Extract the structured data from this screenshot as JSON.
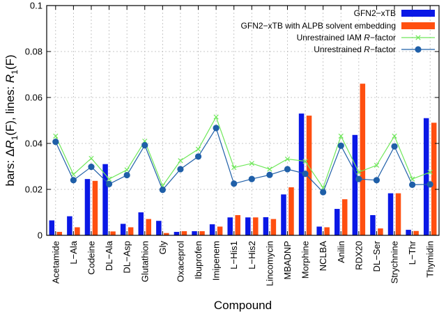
{
  "chart_data": {
    "type": "bar",
    "title": "",
    "xlabel": "Compound",
    "ylabel_parts": [
      "bars: Δ",
      "R",
      "1",
      "(F), lines: ",
      "R",
      "1",
      "(F)"
    ],
    "ylim": [
      0,
      0.1
    ],
    "yticks": [
      "0",
      "0.02",
      "0.04",
      "0.06",
      "0.08",
      "0.1"
    ],
    "ytick_values": [
      0,
      0.02,
      0.04,
      0.06,
      0.08,
      0.1
    ],
    "grid": true,
    "legend_position": "top-right",
    "categories": [
      "Acetamide",
      "L−Ala",
      "Codeine",
      "DL−Ala",
      "DL−Asp",
      "Glutathion",
      "Gly",
      "Oxaceprol",
      "Ibuprofen",
      "Imipenem",
      "L−His1",
      "L−His2",
      "Lincomycin",
      "MBADNP",
      "Morphine",
      "NCLBA",
      "Anilin",
      "RDX20",
      "DL−Ser",
      "Strychnine",
      "L−Thr",
      "Thymidin"
    ],
    "series": [
      {
        "name": "GFN2−xTB",
        "kind": "bar",
        "color": "#0a18e6",
        "values": [
          0.0065,
          0.0083,
          0.0245,
          0.031,
          0.005,
          0.01,
          0.0063,
          0.0015,
          0.0018,
          0.0048,
          0.0078,
          0.0078,
          0.0079,
          0.0178,
          0.053,
          0.0038,
          0.0115,
          0.0437,
          0.0088,
          0.0183,
          0.0024,
          0.051
        ]
      },
      {
        "name": "GFN2−xTB with ALPB solvent embedding",
        "kind": "bar",
        "color": "#ff4f10",
        "values": [
          0.0015,
          0.0035,
          0.0237,
          0.0017,
          0.0035,
          0.0071,
          0.001,
          0.0018,
          0.0018,
          0.0038,
          0.0088,
          0.0078,
          0.0071,
          0.0209,
          0.0521,
          0.0035,
          0.0157,
          0.066,
          0.003,
          0.0183,
          0.0019,
          0.049
        ]
      },
      {
        "name_parts": [
          "Unrestrained IAM ",
          "R",
          "−factor"
        ],
        "kind": "line",
        "marker": "x",
        "color": "#6fe85a",
        "values": [
          0.0432,
          0.0265,
          0.0335,
          0.0245,
          0.0285,
          0.041,
          0.0215,
          0.0325,
          0.0375,
          0.0515,
          0.0295,
          0.0313,
          0.0288,
          0.0332,
          0.0322,
          0.0207,
          0.0432,
          0.0275,
          0.0305,
          0.0432,
          0.0245,
          0.0275
        ]
      },
      {
        "name_parts": [
          "Unrestrained ",
          "R",
          "−factor"
        ],
        "kind": "line",
        "marker": "circle",
        "color": "#1f5fa8",
        "values": [
          0.0407,
          0.024,
          0.0298,
          0.0223,
          0.0262,
          0.0392,
          0.0198,
          0.0288,
          0.0343,
          0.0467,
          0.0225,
          0.0245,
          0.0263,
          0.0288,
          0.0268,
          0.0188,
          0.039,
          0.0245,
          0.024,
          0.0387,
          0.022,
          0.0222
        ]
      }
    ]
  }
}
